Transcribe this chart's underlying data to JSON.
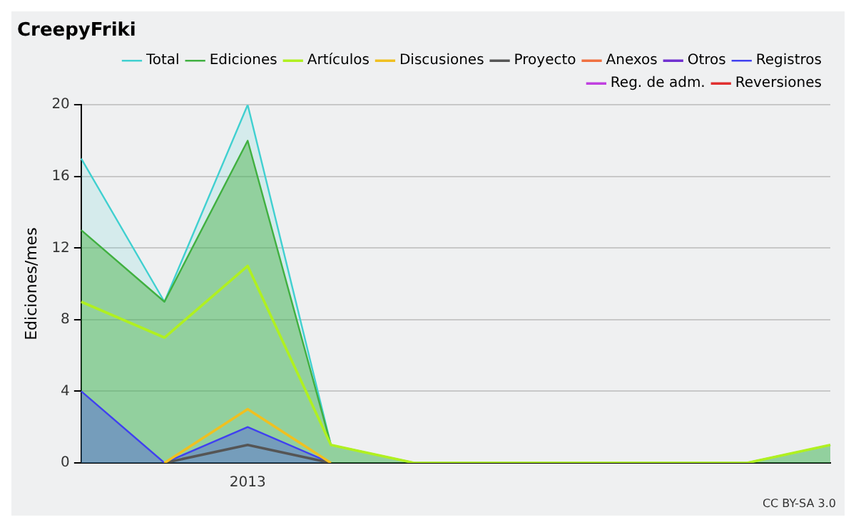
{
  "chart_data": {
    "type": "line",
    "title": "CreepyFriki",
    "ylabel": "Ediciones/mes",
    "categories": [
      null,
      null,
      "2013",
      null,
      null,
      null,
      null,
      null,
      null,
      null
    ],
    "series": [
      {
        "name": "Total",
        "type": "area",
        "color": "#40d0d0",
        "values": [
          17,
          9,
          20,
          1,
          0,
          0,
          0,
          0,
          0,
          1
        ]
      },
      {
        "name": "Ediciones",
        "type": "area",
        "color": "#40b040",
        "values": [
          13,
          9,
          18,
          1,
          0,
          0,
          0,
          0,
          0,
          1
        ]
      },
      {
        "name": "Artículos",
        "type": "line",
        "color": "#b0f020",
        "values": [
          9,
          7,
          11,
          1,
          0,
          0,
          0,
          0,
          0,
          1
        ]
      },
      {
        "name": "Discusiones",
        "type": "line",
        "color": "#f0c020",
        "values": [
          null,
          0,
          3,
          0,
          null,
          null,
          null,
          null,
          null,
          null
        ]
      },
      {
        "name": "Proyecto",
        "type": "line",
        "color": "#555555",
        "values": [
          null,
          0,
          1,
          0,
          null,
          null,
          null,
          null,
          null,
          null
        ]
      },
      {
        "name": "Anexos",
        "type": "line",
        "color": "#f07040",
        "values": [
          null,
          null,
          null,
          null,
          null,
          null,
          null,
          null,
          null,
          null
        ]
      },
      {
        "name": "Otros",
        "type": "line",
        "color": "#7030d0",
        "values": [
          null,
          null,
          null,
          null,
          null,
          null,
          null,
          null,
          null,
          null
        ]
      },
      {
        "name": "Registros",
        "type": "area",
        "color": "#4040f0",
        "values": [
          4,
          0,
          2,
          0,
          null,
          null,
          null,
          null,
          null,
          null
        ]
      },
      {
        "name": "Reg. de adm.",
        "type": "line",
        "color": "#c040e0",
        "values": [
          null,
          null,
          null,
          null,
          null,
          null,
          null,
          null,
          null,
          null
        ]
      },
      {
        "name": "Reversiones",
        "type": "line",
        "color": "#e03030",
        "values": [
          null,
          null,
          null,
          null,
          null,
          null,
          null,
          null,
          null,
          null
        ]
      }
    ],
    "ylim": [
      0,
      20
    ],
    "yticks": [
      0,
      4,
      8,
      12,
      16,
      20
    ],
    "grid": "y",
    "legend": "top right",
    "annotations": [
      "CC BY-SA 3.0"
    ]
  }
}
